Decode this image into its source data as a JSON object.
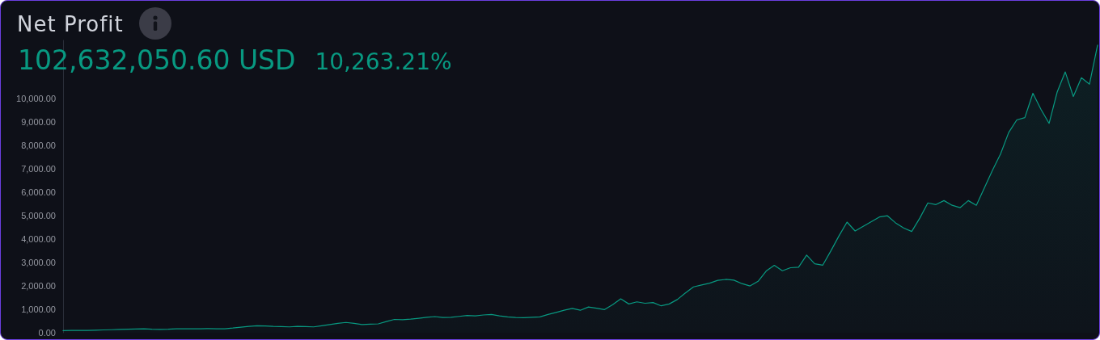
{
  "chart_data": {
    "type": "area",
    "title": "Net Profit",
    "annotations": [
      "102,632,050.60 USD",
      "10,263.21%"
    ],
    "categories": [
      null,
      null,
      null,
      null,
      null,
      null,
      null,
      null,
      null,
      null,
      null,
      null,
      null,
      null,
      null,
      null,
      null,
      null,
      null,
      null,
      null,
      null,
      null,
      null,
      null,
      null,
      null,
      null,
      null,
      null,
      null,
      null,
      null,
      null,
      null,
      null,
      null,
      null,
      null,
      null,
      null,
      null,
      null,
      null,
      null,
      null,
      null,
      null,
      null,
      null,
      null,
      null,
      null,
      null,
      null,
      null,
      null,
      null,
      null,
      null,
      null,
      null,
      null,
      null,
      null,
      null,
      null,
      null,
      null,
      null,
      null,
      null,
      null,
      null,
      null,
      null,
      null,
      null,
      null,
      null,
      null,
      null,
      null,
      null,
      null,
      null,
      null,
      null,
      null,
      null,
      null,
      null,
      null,
      null,
      null,
      null,
      null,
      null,
      null,
      null,
      null,
      null,
      null,
      null,
      null,
      null,
      null,
      null,
      null,
      null,
      null,
      null,
      null,
      null,
      null,
      null,
      null,
      null,
      null,
      null,
      null,
      null,
      null,
      null,
      null,
      null,
      null,
      null,
      null
    ],
    "values": [
      90,
      100,
      100,
      100,
      110,
      120,
      130,
      140,
      150,
      160,
      170,
      150,
      140,
      150,
      170,
      170,
      170,
      170,
      180,
      170,
      170,
      200,
      240,
      270,
      300,
      290,
      270,
      260,
      250,
      270,
      260,
      250,
      300,
      350,
      400,
      440,
      400,
      350,
      370,
      380,
      480,
      570,
      560,
      580,
      620,
      660,
      690,
      650,
      660,
      700,
      740,
      720,
      760,
      780,
      720,
      680,
      650,
      640,
      660,
      680,
      780,
      870,
      960,
      1040,
      960,
      1100,
      1050,
      990,
      1200,
      1450,
      1230,
      1320,
      1260,
      1290,
      1150,
      1230,
      1420,
      1700,
      1960,
      2040,
      2120,
      2240,
      2280,
      2250,
      2100,
      2000,
      2200,
      2640,
      2880,
      2650,
      2780,
      2800,
      3320,
      2950,
      2890,
      3500,
      4140,
      4730,
      4350,
      4550,
      4750,
      4950,
      5000,
      4700,
      4480,
      4330,
      4900,
      5550,
      5480,
      5650,
      5450,
      5350,
      5650,
      5450,
      6200,
      6950,
      7650,
      8560,
      9100,
      9200,
      10240,
      9550,
      8950,
      10290,
      11150,
      10100,
      10900,
      10630,
      12300
    ],
    "color": "#089981",
    "ylim": [
      0,
      12500
    ],
    "yticks": [
      {
        "value": 0,
        "label": "0.00"
      },
      {
        "value": 1000,
        "label": "1,000.00"
      },
      {
        "value": 2000,
        "label": "2,000.00"
      },
      {
        "value": 3000,
        "label": "3,000.00"
      },
      {
        "value": 4000,
        "label": "4,000.00"
      },
      {
        "value": 5000,
        "label": "5,000.00"
      },
      {
        "value": 6000,
        "label": "6,000.00"
      },
      {
        "value": 7000,
        "label": "7,000.00"
      },
      {
        "value": 8000,
        "label": "8,000.00"
      },
      {
        "value": 9000,
        "label": "9,000.00"
      },
      {
        "value": 10000,
        "label": "10,000.00"
      }
    ],
    "tick_labels": "y"
  }
}
